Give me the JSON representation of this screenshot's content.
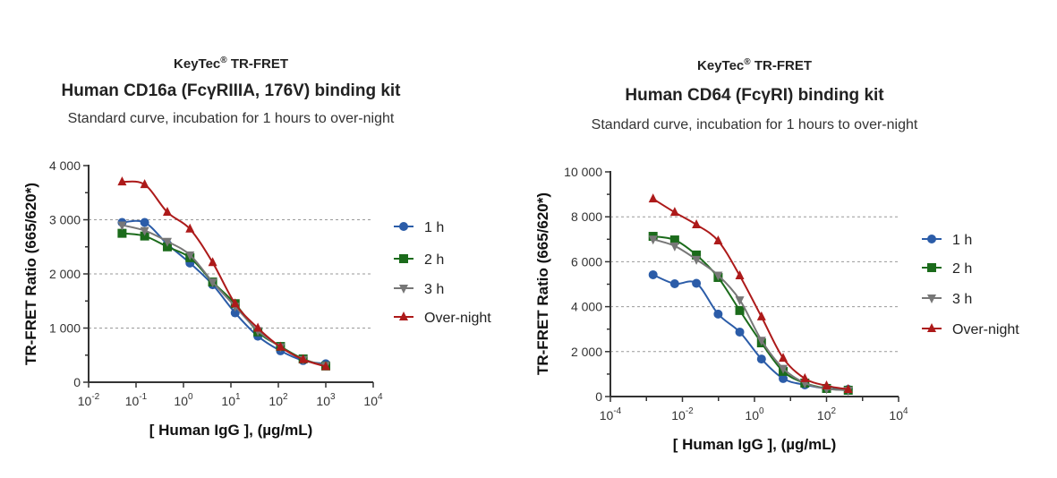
{
  "chart_data": [
    {
      "type": "scatter",
      "brand": "KeyTec",
      "brand_mark": "®",
      "title_prefix": "TR-FRET",
      "title": "Human CD16a (FcγRIIIA, 176V) binding kit",
      "subtitle": "Standard curve,  incubation for 1 hours to over-night",
      "xlabel": "[ Human IgG ],  (µg/mL)",
      "ylabel": "TR-FRET Ratio (665/620*)",
      "xscale": "log",
      "xlim": [
        0.01,
        10000
      ],
      "ylim": [
        0,
        4000
      ],
      "xticks": [
        "10-2",
        "10-1",
        "100",
        "101",
        "102",
        "103",
        "104"
      ],
      "yticks": [
        "0",
        "1 000",
        "2 000",
        "3 000",
        "4 000"
      ],
      "grid": "dashed horizontal",
      "legend": "right",
      "x": [
        0.0508,
        0.152,
        0.457,
        1.37,
        4.12,
        12.3,
        37,
        111,
        333,
        1000
      ],
      "series": [
        {
          "name": "1 h",
          "color": "#2b5ca8",
          "marker": "circle",
          "values": [
            2950,
            2950,
            2550,
            2200,
            1800,
            1280,
            850,
            580,
            400,
            340
          ]
        },
        {
          "name": "2 h",
          "color": "#1b6b1b",
          "marker": "square",
          "values": [
            2750,
            2700,
            2500,
            2300,
            1850,
            1450,
            930,
            660,
            430,
            300
          ]
        },
        {
          "name": "3 h",
          "color": "#777777",
          "marker": "triangle-down",
          "values": [
            2900,
            2800,
            2600,
            2350,
            1850,
            1400,
            950,
            650,
            420,
            310
          ]
        },
        {
          "name": "Over-night",
          "color": "#ad1a1a",
          "marker": "triangle-up",
          "values": [
            3700,
            3650,
            3140,
            2830,
            2210,
            1450,
            1000,
            650,
            420,
            290
          ]
        }
      ]
    },
    {
      "type": "scatter",
      "brand": "KeyTec",
      "brand_mark": "®",
      "title_prefix": "TR-FRET",
      "title": "Human CD64 (FcγRI) binding kit",
      "subtitle": "Standard curve,  incubation for 1 hours to over-night",
      "xlabel": "[ Human IgG ],  (µg/mL)",
      "ylabel": "TR-FRET Ratio (665/620*)",
      "xscale": "log",
      "xlim": [
        0.0001,
        10000
      ],
      "ylim": [
        0,
        10000
      ],
      "xticks": [
        "10-4",
        "10-2",
        "100",
        "102",
        "104"
      ],
      "yticks": [
        "0",
        "2 000",
        "4 000",
        "6 000",
        "8 000",
        "10 000"
      ],
      "grid": "dashed horizontal",
      "legend": "right",
      "x": [
        0.00153,
        0.0061,
        0.0244,
        0.098,
        0.39,
        1.5625,
        6.25,
        25,
        100,
        400
      ],
      "series": [
        {
          "name": "1 h",
          "color": "#2b5ca8",
          "marker": "circle",
          "values": [
            5420,
            5020,
            5040,
            3670,
            2870,
            1670,
            800,
            520,
            360,
            320
          ]
        },
        {
          "name": "2 h",
          "color": "#1b6b1b",
          "marker": "square",
          "values": [
            7130,
            6970,
            6300,
            5300,
            3830,
            2390,
            1120,
            600,
            360,
            280
          ]
        },
        {
          "name": "3 h",
          "color": "#777777",
          "marker": "triangle-down",
          "values": [
            7000,
            6700,
            6100,
            5400,
            4300,
            2500,
            1250,
            600,
            350,
            280
          ]
        },
        {
          "name": "Over-night",
          "color": "#ad1a1a",
          "marker": "triangle-up",
          "values": [
            8800,
            8200,
            7650,
            6930,
            5380,
            3550,
            1710,
            800,
            480,
            320
          ]
        }
      ]
    }
  ]
}
